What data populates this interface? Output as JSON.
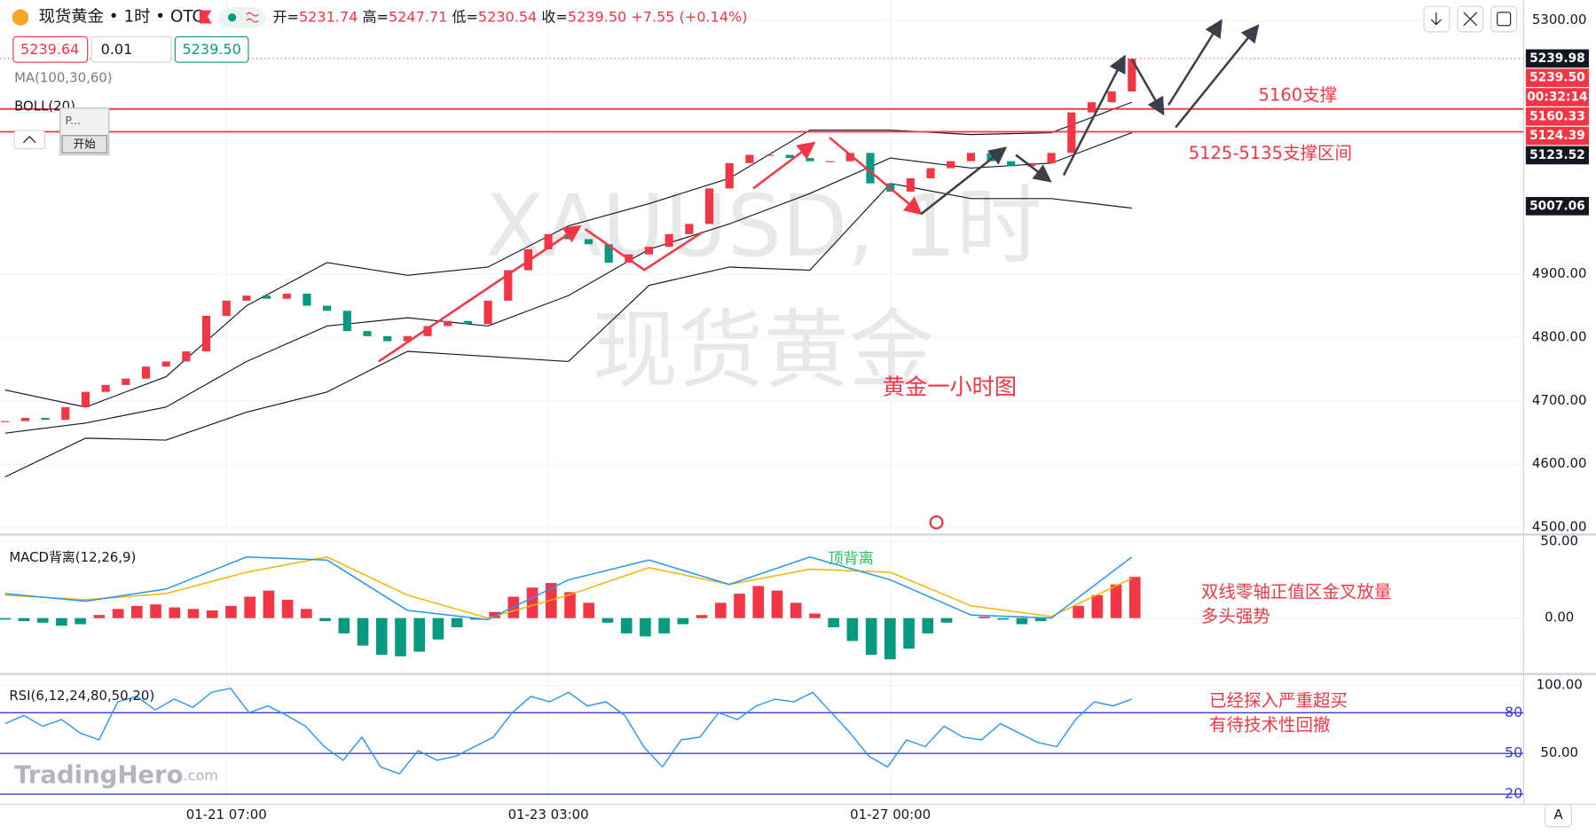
{
  "header": {
    "symbol": "现货黄金 • 1时 • OTC",
    "ohlc": [
      {
        "label": "开=",
        "value": "5231.74"
      },
      {
        "label": "高=",
        "value": "5247.71"
      },
      {
        "label": "低=",
        "value": "5230.54"
      },
      {
        "label": "收=",
        "value": "5239.50"
      }
    ],
    "change": "+7.55 (+0.14%)",
    "sell": "5239.64",
    "qty": "0.01",
    "buy": "5239.50",
    "button_p": "P...",
    "button_start": "开始",
    "scale_button": "A",
    "brand": "TradingHero",
    "brand_suffix": ".com"
  },
  "chart_data": [
    {
      "type": "candlestick",
      "title": "XAUUSD, 1时",
      "subtitle": "现货黄金",
      "indicators": [
        "MA(100,30,60)",
        "BOLL(20)"
      ],
      "categories": [
        null,
        null,
        null,
        null,
        null,
        null,
        null,
        null,
        null,
        null,
        null,
        "01-21 07:00",
        null,
        null,
        null,
        null,
        null,
        null,
        null,
        null,
        null,
        null,
        null,
        null,
        null,
        null,
        null,
        "01-23 03:00",
        null,
        null,
        null,
        null,
        null,
        null,
        null,
        null,
        null,
        null,
        null,
        null,
        null,
        null,
        null,
        null,
        "01-27 00:00",
        null,
        null,
        null,
        null,
        null,
        null,
        null,
        null,
        null,
        null,
        null,
        null
      ],
      "close": [
        4668,
        4673,
        4670,
        4690,
        4714,
        4725,
        4735,
        4754,
        4762,
        4778,
        4834,
        4858,
        4866,
        4861,
        4869,
        4850,
        4842,
        4810,
        4802,
        4794,
        4802,
        4818,
        4826,
        4821,
        4858,
        4906,
        4939,
        4963,
        4955,
        4947,
        4918,
        4931,
        4943,
        4963,
        4979,
        5035,
        5075,
        5088,
        5088,
        5083,
        5078,
        5078,
        5091,
        5043,
        5030,
        5051,
        5067,
        5078,
        5091,
        5078,
        5070,
        5075,
        5091,
        5155,
        5171,
        5188,
        5239.5
      ],
      "up_color": "#f23645",
      "down_color": "#089981",
      "bands": {
        "color": "#131722",
        "upper": [
          4717,
          4690,
          4738,
          4850,
          4918,
          4898,
          4911,
          4976,
          5011,
          5051,
          5127,
          5127,
          5120,
          5123,
          5171
        ],
        "middle": [
          4649,
          4665,
          4690,
          4762,
          4818,
          4831,
          4818,
          4866,
          4939,
          4979,
          5027,
          5083,
          5067,
          5075,
          5123
        ],
        "lower": [
          4580,
          4641,
          4638,
          4682,
          4714,
          4778,
          4770,
          4762,
          4882,
          4911,
          4906,
          5043,
          5019,
          5019,
          5004
        ]
      },
      "ylim": [
        4489,
        5332
      ],
      "yticks": [
        {
          "value": 5300,
          "label": "5300.00"
        },
        {
          "value": 4900,
          "label": "4900.00"
        },
        {
          "value": 4800,
          "label": "4800.00"
        },
        {
          "value": 4700,
          "label": "4700.00"
        },
        {
          "value": 4600,
          "label": "4600.00"
        },
        {
          "value": 4500,
          "label": "4500.00"
        }
      ],
      "hlines": [
        {
          "value": 5160.33,
          "color": "#f23645"
        },
        {
          "value": 5124.39,
          "color": "#f23645"
        }
      ],
      "price_tags": [
        {
          "value": 5239.98,
          "label": "5239.98",
          "color": "#131722"
        },
        {
          "value": 5239.5,
          "label": "5239.50",
          "color": "#f23645"
        },
        {
          "label": "00:32:14",
          "color": "#f23645"
        },
        {
          "value": 5160.33,
          "label": "5160.33",
          "color": "#f23645"
        },
        {
          "value": 5124.39,
          "label": "5124.39",
          "color": "#f23645"
        },
        {
          "value": 5123.52,
          "label": "5123.52",
          "color": "#131722"
        },
        {
          "value": 5007.06,
          "label": "5007.06",
          "color": "#131722"
        }
      ],
      "annotations": [
        "5160支撑",
        "5125-5135支撑区间",
        "黄金一小时图"
      ]
    },
    {
      "type": "macd",
      "title": "MACD背离(12,26,9)",
      "histogram": [
        -1,
        -2,
        -3,
        -5,
        -4,
        2,
        6,
        8,
        9,
        7,
        6,
        5,
        8,
        14,
        18,
        12,
        6,
        -2,
        -10,
        -18,
        -24,
        -25,
        -22,
        -14,
        -6,
        -1,
        4,
        14,
        20,
        23,
        17,
        10,
        -3,
        -10,
        -12,
        -10,
        -4,
        2,
        10,
        16,
        21,
        18,
        10,
        3,
        -6,
        -15,
        -24,
        -27,
        -20,
        -10,
        -3,
        0,
        1,
        -1,
        -4,
        -2,
        0,
        8,
        15,
        22,
        27
      ],
      "dif": [
        16,
        11,
        19,
        40,
        38,
        5,
        -1,
        25,
        38,
        22,
        40,
        25,
        2,
        0,
        40
      ],
      "dea": [
        15,
        12,
        16,
        30,
        40,
        15,
        0,
        15,
        33,
        22,
        32,
        30,
        8,
        1,
        26
      ],
      "colors": {
        "up": "#f23645",
        "down": "#089981",
        "dif": "#2196f3",
        "dea": "#f5b400"
      },
      "ylim": [
        -35.3,
        52.7
      ],
      "yticks": [
        {
          "value": 50,
          "label": "50.00"
        },
        {
          "value": 0,
          "label": "0.00"
        }
      ],
      "annotations": [
        "顶背离",
        "双线零轴正值区金叉放量",
        "多头强势"
      ]
    },
    {
      "type": "line",
      "title": "RSI(6,12,24,80,50,20)",
      "values": [
        72,
        78,
        70,
        75,
        65,
        60,
        88,
        92,
        82,
        90,
        84,
        95,
        98,
        80,
        85,
        78,
        70,
        55,
        45,
        62,
        40,
        35,
        52,
        45,
        48,
        55,
        62,
        80,
        92,
        88,
        95,
        85,
        88,
        78,
        55,
        40,
        60,
        62,
        80,
        75,
        85,
        90,
        88,
        95,
        80,
        65,
        48,
        40,
        60,
        55,
        70,
        62,
        60,
        72,
        65,
        58,
        55,
        75,
        88,
        85,
        90
      ],
      "color": "#2196f3",
      "level_color": "#3d3dd6",
      "levels": [
        80,
        50,
        20
      ],
      "ylim": [
        12.5,
        106.25
      ],
      "yticks": [
        {
          "value": 100,
          "label": "100.00"
        },
        {
          "value": 50,
          "label": "50.00"
        }
      ],
      "annotations": [
        "已经探入严重超买",
        "有待技术性回撤"
      ]
    }
  ]
}
